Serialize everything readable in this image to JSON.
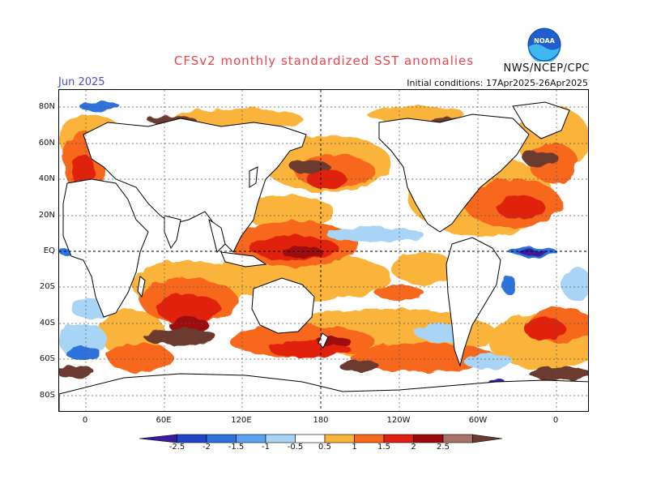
{
  "title": "CFSv2 monthly standardized SST anomalies",
  "agency": "NWS/NCEP/CPC",
  "logo_text": "NOAA",
  "month_label": "Jun 2025",
  "initial_conditions": "Initial conditions: 17Apr2025-26Apr2025",
  "lat_labels": [
    "80N",
    "60N",
    "40N",
    "20N",
    "EQ",
    "20S",
    "40S",
    "60S",
    "80S"
  ],
  "lon_labels": [
    "0",
    "60E",
    "120E",
    "180",
    "120W",
    "60W",
    "0"
  ],
  "colorbar": {
    "ticks": [
      "-2.5",
      "-2",
      "-1.5",
      "-1",
      "-0.5",
      "0.5",
      "1",
      "1.5",
      "2",
      "2.5"
    ],
    "colors": [
      "#3a1b9e",
      "#2244c6",
      "#2f72dc",
      "#5aa4ee",
      "#a8d4f6",
      "#ffffff",
      "#fbb43a",
      "#f7671c",
      "#e0200e",
      "#9e0a0a",
      "#a97268",
      "#6b3a2e"
    ]
  }
}
